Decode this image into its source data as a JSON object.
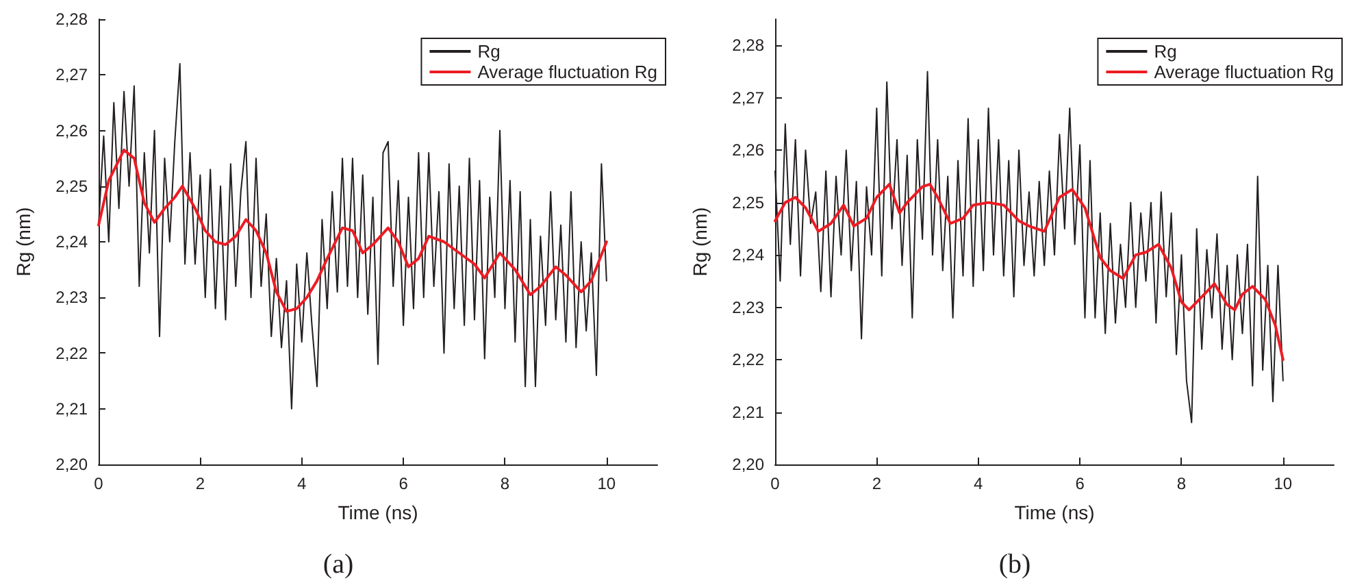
{
  "chart_data": [
    {
      "type": "line",
      "title": "(a)",
      "xlabel": "Time (ns)",
      "ylabel": "Rg (nm)",
      "legend": "top right",
      "marker": "none",
      "xlim": [
        0,
        11
      ],
      "xticks": [
        0,
        2,
        4,
        6,
        8,
        10
      ],
      "ylim": [
        2.2,
        2.28
      ],
      "yticks": [
        {
          "value": 2.2,
          "label": "2,20"
        },
        {
          "value": 2.21,
          "label": "2,21"
        },
        {
          "value": 2.22,
          "label": "2,22"
        },
        {
          "value": 2.23,
          "label": "2,23"
        },
        {
          "value": 2.24,
          "label": "2,24"
        },
        {
          "value": 2.25,
          "label": "2,25"
        },
        {
          "value": 2.26,
          "label": "2,26"
        },
        {
          "value": 2.27,
          "label": "2,27"
        },
        {
          "value": 2.28,
          "label": "2,28"
        }
      ],
      "series": [
        {
          "name": "Rg",
          "color": "#231f20",
          "x": [
            0,
            0.1,
            0.2,
            0.3,
            0.4,
            0.5,
            0.6,
            0.7,
            0.8,
            0.9,
            1,
            1.1,
            1.2,
            1.3,
            1.4,
            1.5,
            1.6,
            1.7,
            1.8,
            1.9,
            2,
            2.1,
            2.2,
            2.3,
            2.4,
            2.5,
            2.6,
            2.7,
            2.8,
            2.9,
            3,
            3.1,
            3.2,
            3.3,
            3.4,
            3.5,
            3.6,
            3.7,
            3.8,
            3.9,
            4,
            4.1,
            4.2,
            4.3,
            4.4,
            4.5,
            4.6,
            4.7,
            4.8,
            4.9,
            5,
            5.1,
            5.2,
            5.3,
            5.4,
            5.5,
            5.6,
            5.7,
            5.8,
            5.9,
            6,
            6.1,
            6.2,
            6.3,
            6.4,
            6.5,
            6.6,
            6.7,
            6.8,
            6.9,
            7,
            7.1,
            7.2,
            7.3,
            7.4,
            7.5,
            7.6,
            7.7,
            7.8,
            7.9,
            8,
            8.1,
            8.2,
            8.3,
            8.4,
            8.5,
            8.6,
            8.7,
            8.8,
            8.9,
            9,
            9.1,
            9.2,
            9.3,
            9.4,
            9.5,
            9.6,
            9.7,
            9.8,
            9.9,
            10
          ],
          "values": [
            2.243,
            2.259,
            2.24,
            2.265,
            2.246,
            2.267,
            2.25,
            2.268,
            2.232,
            2.256,
            2.238,
            2.26,
            2.223,
            2.255,
            2.24,
            2.258,
            2.272,
            2.236,
            2.256,
            2.236,
            2.252,
            2.23,
            2.253,
            2.228,
            2.25,
            2.226,
            2.254,
            2.232,
            2.249,
            2.258,
            2.23,
            2.255,
            2.232,
            2.245,
            2.223,
            2.237,
            2.221,
            2.233,
            2.21,
            2.236,
            2.222,
            2.238,
            2.225,
            2.214,
            2.244,
            2.228,
            2.249,
            2.231,
            2.255,
            2.232,
            2.255,
            2.23,
            2.252,
            2.227,
            2.248,
            2.218,
            2.256,
            2.258,
            2.232,
            2.251,
            2.225,
            2.248,
            2.228,
            2.256,
            2.23,
            2.256,
            2.232,
            2.249,
            2.22,
            2.254,
            2.228,
            2.25,
            2.225,
            2.255,
            2.226,
            2.251,
            2.219,
            2.248,
            2.23,
            2.26,
            2.228,
            2.251,
            2.222,
            2.249,
            2.214,
            2.244,
            2.214,
            2.241,
            2.225,
            2.249,
            2.226,
            2.243,
            2.222,
            2.249,
            2.221,
            2.24,
            2.224,
            2.238,
            2.216,
            2.254,
            2.233
          ]
        },
        {
          "name": "Average fluctuation Rg",
          "color": "#ed1c24",
          "x": [
            0,
            0.2,
            0.5,
            0.7,
            0.9,
            1.1,
            1.3,
            1.5,
            1.65,
            1.9,
            2.1,
            2.3,
            2.5,
            2.7,
            2.9,
            3.1,
            3.3,
            3.5,
            3.7,
            3.9,
            4.1,
            4.3,
            4.5,
            4.8,
            5,
            5.2,
            5.4,
            5.7,
            5.9,
            6.1,
            6.3,
            6.5,
            6.8,
            7.1,
            7.4,
            7.6,
            7.9,
            8.2,
            8.5,
            8.7,
            9,
            9.2,
            9.5,
            9.7,
            10
          ],
          "values": [
            2.243,
            2.251,
            2.2565,
            2.255,
            2.247,
            2.2435,
            2.246,
            2.248,
            2.25,
            2.246,
            2.242,
            2.24,
            2.2395,
            2.241,
            2.244,
            2.242,
            2.238,
            2.231,
            2.2275,
            2.228,
            2.23,
            2.233,
            2.237,
            2.2425,
            2.242,
            2.238,
            2.2395,
            2.2425,
            2.24,
            2.2355,
            2.237,
            2.241,
            2.24,
            2.238,
            2.236,
            2.2335,
            2.238,
            2.235,
            2.2305,
            2.232,
            2.2355,
            2.234,
            2.231,
            2.233,
            2.24
          ]
        }
      ]
    },
    {
      "type": "line",
      "title": "(b)",
      "xlabel": "Time (ns)",
      "ylabel": "Rg (nm)",
      "legend": "top right",
      "marker": "none",
      "xlim": [
        0,
        11
      ],
      "xticks": [
        0,
        2,
        4,
        6,
        8,
        10
      ],
      "ylim": [
        2.2,
        2.285
      ],
      "yticks": [
        {
          "value": 2.2,
          "label": "2,20"
        },
        {
          "value": 2.21,
          "label": "2,21"
        },
        {
          "value": 2.22,
          "label": "2,22"
        },
        {
          "value": 2.23,
          "label": "2,23"
        },
        {
          "value": 2.24,
          "label": "2,24"
        },
        {
          "value": 2.25,
          "label": "2,25"
        },
        {
          "value": 2.26,
          "label": "2,26"
        },
        {
          "value": 2.27,
          "label": "2,27"
        },
        {
          "value": 2.28,
          "label": "2,28"
        }
      ],
      "series": [
        {
          "name": "Rg",
          "color": "#231f20",
          "x": [
            0,
            0.1,
            0.2,
            0.3,
            0.4,
            0.5,
            0.6,
            0.7,
            0.8,
            0.9,
            1,
            1.1,
            1.2,
            1.3,
            1.4,
            1.5,
            1.6,
            1.7,
            1.8,
            1.9,
            2,
            2.1,
            2.2,
            2.3,
            2.4,
            2.5,
            2.6,
            2.7,
            2.8,
            2.9,
            3,
            3.1,
            3.2,
            3.3,
            3.4,
            3.5,
            3.6,
            3.7,
            3.8,
            3.9,
            4,
            4.1,
            4.2,
            4.3,
            4.4,
            4.5,
            4.6,
            4.7,
            4.8,
            4.9,
            5,
            5.1,
            5.2,
            5.3,
            5.4,
            5.5,
            5.6,
            5.7,
            5.8,
            5.9,
            6,
            6.1,
            6.2,
            6.3,
            6.4,
            6.5,
            6.6,
            6.7,
            6.8,
            6.9,
            7,
            7.1,
            7.2,
            7.3,
            7.4,
            7.5,
            7.6,
            7.7,
            7.8,
            7.9,
            8,
            8.1,
            8.2,
            8.3,
            8.4,
            8.5,
            8.6,
            8.7,
            8.8,
            8.9,
            9,
            9.1,
            9.2,
            9.3,
            9.4,
            9.5,
            9.6,
            9.7,
            9.8,
            9.9,
            10
          ],
          "values": [
            2.256,
            2.235,
            2.265,
            2.242,
            2.262,
            2.236,
            2.26,
            2.246,
            2.252,
            2.233,
            2.256,
            2.232,
            2.255,
            2.24,
            2.26,
            2.237,
            2.254,
            2.224,
            2.253,
            2.24,
            2.268,
            2.236,
            2.273,
            2.245,
            2.262,
            2.238,
            2.259,
            2.228,
            2.262,
            2.243,
            2.275,
            2.24,
            2.262,
            2.237,
            2.255,
            2.228,
            2.258,
            2.236,
            2.266,
            2.234,
            2.262,
            2.237,
            2.268,
            2.24,
            2.262,
            2.236,
            2.258,
            2.232,
            2.26,
            2.238,
            2.252,
            2.236,
            2.254,
            2.238,
            2.256,
            2.24,
            2.263,
            2.245,
            2.268,
            2.242,
            2.261,
            2.228,
            2.258,
            2.228,
            2.248,
            2.225,
            2.246,
            2.227,
            2.242,
            2.23,
            2.25,
            2.23,
            2.248,
            2.235,
            2.25,
            2.227,
            2.252,
            2.232,
            2.248,
            2.221,
            2.24,
            2.216,
            2.208,
            2.245,
            2.222,
            2.241,
            2.228,
            2.244,
            2.222,
            2.238,
            2.22,
            2.24,
            2.225,
            2.242,
            2.215,
            2.255,
            2.218,
            2.238,
            2.212,
            2.238,
            2.216
          ]
        },
        {
          "name": "Average fluctuation Rg",
          "color": "#ed1c24",
          "x": [
            0,
            0.2,
            0.4,
            0.6,
            0.85,
            1.1,
            1.35,
            1.55,
            1.8,
            2,
            2.25,
            2.45,
            2.6,
            2.9,
            3.05,
            3.2,
            3.45,
            3.7,
            3.9,
            4.2,
            4.5,
            4.8,
            5,
            5.3,
            5.6,
            5.85,
            6.1,
            6.4,
            6.6,
            6.85,
            7.1,
            7.3,
            7.55,
            7.8,
            8,
            8.15,
            8.4,
            8.65,
            8.9,
            9.05,
            9.2,
            9.4,
            9.65,
            9.85,
            10
          ],
          "values": [
            2.2465,
            2.25,
            2.251,
            2.249,
            2.2445,
            2.246,
            2.2495,
            2.2455,
            2.247,
            2.251,
            2.2535,
            2.248,
            2.25,
            2.253,
            2.2535,
            2.251,
            2.246,
            2.247,
            2.2495,
            2.25,
            2.2495,
            2.2465,
            2.2455,
            2.2445,
            2.251,
            2.2525,
            2.249,
            2.2395,
            2.237,
            2.2355,
            2.24,
            2.2405,
            2.242,
            2.2375,
            2.231,
            2.2295,
            2.232,
            2.2345,
            2.2305,
            2.2295,
            2.2325,
            2.234,
            2.2315,
            2.2265,
            2.22
          ]
        }
      ]
    }
  ]
}
